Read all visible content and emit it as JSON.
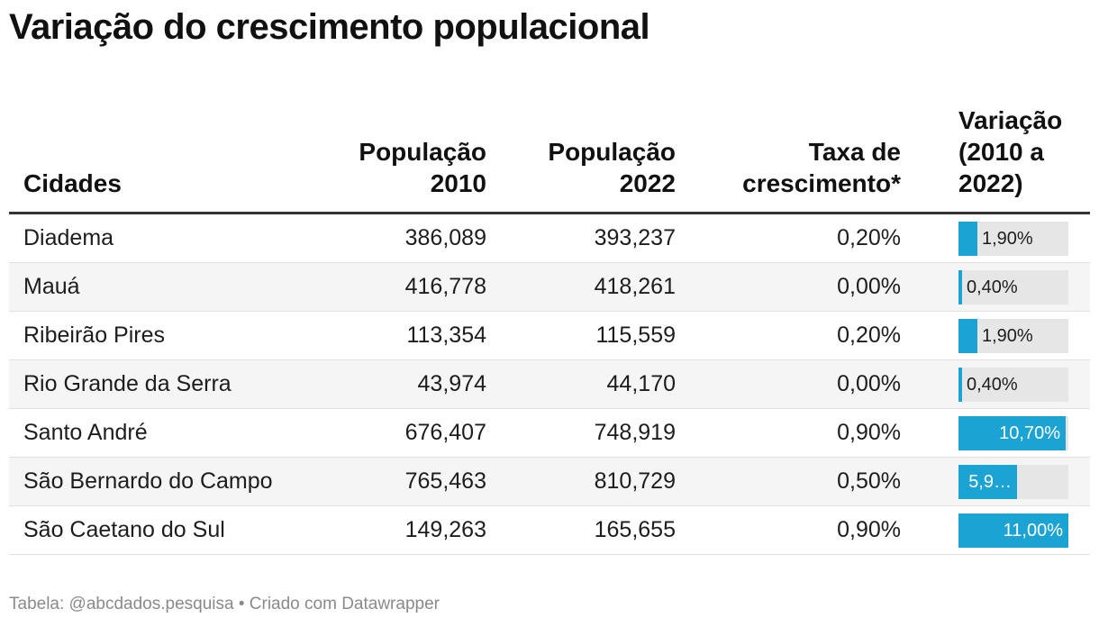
{
  "title": "Variação do crescimento populacional",
  "footer": "Tabela: @abcdados.pesquisa • Criado com Datawrapper",
  "colors": {
    "bar": "#1ba3d3",
    "track": "#e6e6e6"
  },
  "chart_data": {
    "type": "table",
    "title": "Variação do crescimento populacional",
    "columns": [
      {
        "label": "Cidades",
        "align": "left"
      },
      {
        "label": "População 2010",
        "align": "right"
      },
      {
        "label": "População 2022",
        "align": "right"
      },
      {
        "label": "Taxa de crescimento*",
        "align": "right"
      },
      {
        "label": "Variação (2010 a 2022)",
        "align": "left"
      }
    ],
    "bar_max": 11.0,
    "rows": [
      {
        "city": "Diadema",
        "pop2010": "386,089",
        "pop2022": "393,237",
        "rate": "0,20%",
        "variation": 1.9,
        "variation_label": "1,90%"
      },
      {
        "city": "Mauá",
        "pop2010": "416,778",
        "pop2022": "418,261",
        "rate": "0,00%",
        "variation": 0.4,
        "variation_label": "0,40%"
      },
      {
        "city": "Ribeirão Pires",
        "pop2010": "113,354",
        "pop2022": "115,559",
        "rate": "0,20%",
        "variation": 1.9,
        "variation_label": "1,90%"
      },
      {
        "city": "Rio Grande da Serra",
        "pop2010": "43,974",
        "pop2022": "44,170",
        "rate": "0,00%",
        "variation": 0.4,
        "variation_label": "0,40%"
      },
      {
        "city": "Santo André",
        "pop2010": "676,407",
        "pop2022": "748,919",
        "rate": "0,90%",
        "variation": 10.7,
        "variation_label": "10,70%"
      },
      {
        "city": "São Bernardo do Campo",
        "pop2010": "765,463",
        "pop2022": "810,729",
        "rate": "0,50%",
        "variation": 5.9,
        "variation_label": "5,9…"
      },
      {
        "city": "São Caetano do Sul",
        "pop2010": "149,263",
        "pop2022": "165,655",
        "rate": "0,90%",
        "variation": 11.0,
        "variation_label": "11,00%"
      }
    ]
  }
}
